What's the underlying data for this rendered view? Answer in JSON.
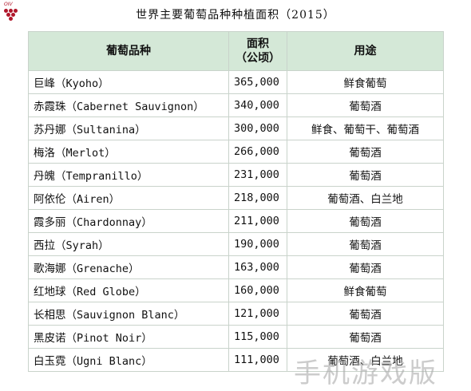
{
  "title": "世界主要葡萄品种种植面积（2015）",
  "logo": {
    "text": "OIV"
  },
  "table": {
    "headers": {
      "variety": "葡萄品种",
      "area_line1": "面积",
      "area_line2": "（公顷）",
      "use": "用途"
    },
    "rows": [
      {
        "variety": "巨峰（Kyoho）",
        "area": "365,000",
        "use": "鲜食葡萄"
      },
      {
        "variety": "赤霞珠（Cabernet Sauvignon）",
        "area": "340,000",
        "use": "葡萄酒"
      },
      {
        "variety": "苏丹娜（Sultanina）",
        "area": "300,000",
        "use": "鲜食、葡萄干、葡萄酒"
      },
      {
        "variety": "梅洛（Merlot）",
        "area": "266,000",
        "use": "葡萄酒"
      },
      {
        "variety": "丹魄（Tempranillo）",
        "area": "231,000",
        "use": "葡萄酒"
      },
      {
        "variety": "阿依伦（Airen）",
        "area": "218,000",
        "use": "葡萄酒、白兰地"
      },
      {
        "variety": "霞多丽（Chardonnay）",
        "area": "211,000",
        "use": "葡萄酒"
      },
      {
        "variety": "西拉（Syrah）",
        "area": "190,000",
        "use": "葡萄酒"
      },
      {
        "variety": "歌海娜（Grenache）",
        "area": "163,000",
        "use": "葡萄酒"
      },
      {
        "variety": "红地球（Red Globe）",
        "area": "160,000",
        "use": "鲜食葡萄"
      },
      {
        "variety": "长相思（Sauvignon Blanc）",
        "area": "121,000",
        "use": "葡萄酒"
      },
      {
        "variety": "黑皮诺（Pinot Noir）",
        "area": "115,000",
        "use": "葡萄酒"
      },
      {
        "variety": "白玉霓（Ugni Blanc）",
        "area": "111,000",
        "use": "葡萄酒、白兰地"
      }
    ]
  },
  "watermark": "手机游戏版",
  "colors": {
    "header_bg": "#d4e8d7",
    "border": "#c9d3cb",
    "logo": "#b0162a"
  }
}
